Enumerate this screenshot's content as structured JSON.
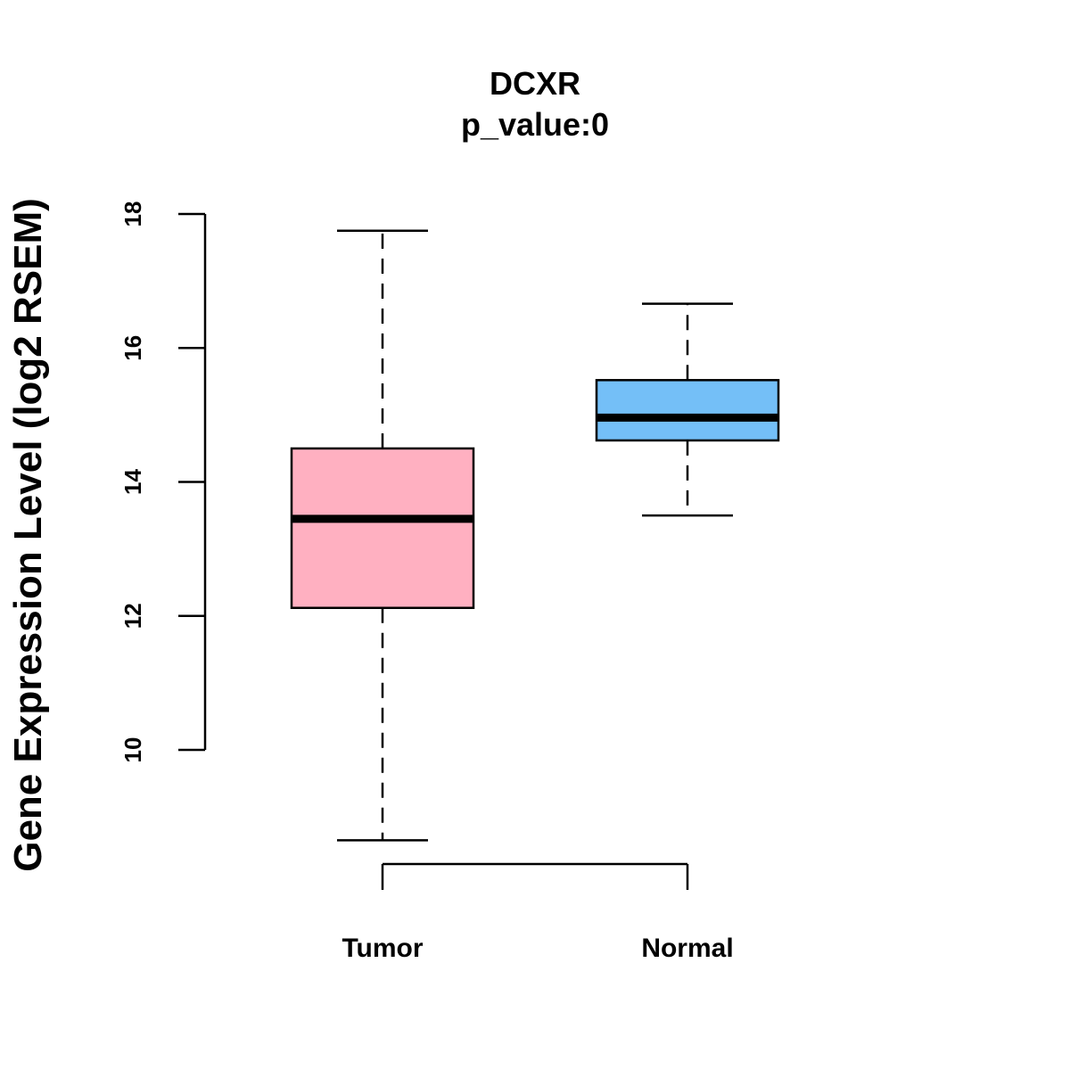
{
  "chart_data": {
    "type": "boxplot",
    "title": "DCXR",
    "subtitle": "p_value:0",
    "xlabel": "",
    "ylabel": "Gene Expression Level (log2 RSEM)",
    "ylim": [
      10,
      18
    ],
    "yticks": [
      10,
      12,
      14,
      16,
      18
    ],
    "grid": false,
    "legend": "none",
    "categories": [
      "Tumor",
      "Normal"
    ],
    "series": [
      {
        "name": "Tumor",
        "color": "#FFB0C1",
        "min": 8.65,
        "q1": 12.12,
        "median": 13.45,
        "q3": 14.5,
        "max": 17.75
      },
      {
        "name": "Normal",
        "color": "#74BFF7",
        "min": 13.5,
        "q1": 14.62,
        "median": 14.96,
        "q3": 15.52,
        "max": 16.66
      }
    ]
  }
}
